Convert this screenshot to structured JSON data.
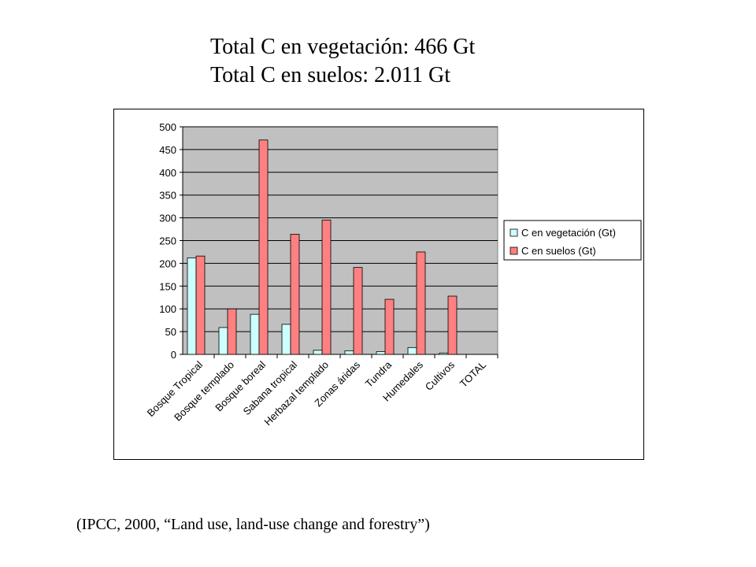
{
  "header": {
    "line1": "Total C en vegetación: 466 Gt",
    "line2": "Total C en suelos: 2.011 Gt"
  },
  "citation": "(IPCC, 2000, “Land use, land-use change and forestry”)",
  "colors": {
    "plot_background": "#c0c0c0",
    "vegetation": "#ccffff",
    "soil": "#ff8080",
    "gridline": "#000000"
  },
  "chart_data": {
    "type": "bar",
    "title": "",
    "xlabel": "",
    "ylabel": "",
    "ylim": [
      0,
      500
    ],
    "yticks": [
      0,
      50,
      100,
      150,
      200,
      250,
      300,
      350,
      400,
      450,
      500
    ],
    "grid": true,
    "legend_position": "right",
    "categories": [
      "Bosque Tropical",
      "Bosque templado",
      "Bosque boreal",
      "Sabana tropical",
      "Herbazal templado",
      "Zonas áridas",
      "Tundra",
      "Humedales",
      "Cultivos",
      "TOTAL"
    ],
    "series": [
      {
        "name": "C en vegetación (Gt)",
        "values": [
          212,
          59,
          88,
          66,
          9,
          8,
          6,
          15,
          3,
          0
        ]
      },
      {
        "name": "C en suelos (Gt)",
        "values": [
          216,
          100,
          471,
          264,
          295,
          191,
          121,
          225,
          128,
          0
        ]
      }
    ]
  }
}
